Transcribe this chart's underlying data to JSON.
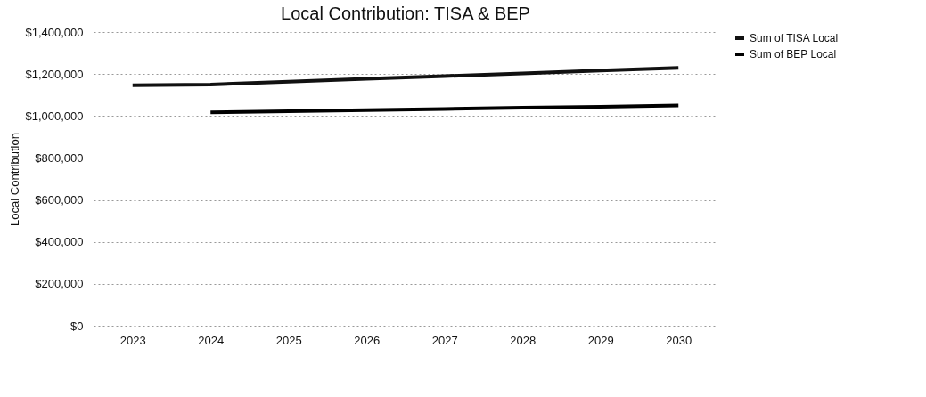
{
  "chart_data": {
    "type": "line",
    "title": "Local Contribution: TISA & BEP",
    "ylabel": "Local Contribution",
    "categories": [
      "2023",
      "2024",
      "2025",
      "2026",
      "2027",
      "2028",
      "2029",
      "2030"
    ],
    "series": [
      {
        "name": "Sum of TISA Local",
        "color": "#111111",
        "values": [
          1147000,
          1150000,
          1163000,
          1177000,
          1190000,
          1203000,
          1216000,
          1229000
        ]
      },
      {
        "name": "Sum of BEP Local",
        "color": "#000000",
        "values": [
          null,
          1017000,
          1022000,
          1028000,
          1033000,
          1039000,
          1044000,
          1050000
        ]
      }
    ],
    "ylim": [
      0,
      1400000
    ],
    "yticks": [
      {
        "value": 0,
        "label": "$0"
      },
      {
        "value": 200000,
        "label": "$200,000"
      },
      {
        "value": 400000,
        "label": "$400,000"
      },
      {
        "value": 600000,
        "label": "$600,000"
      },
      {
        "value": 800000,
        "label": "$800,000"
      },
      {
        "value": 1000000,
        "label": "$1,000,000"
      },
      {
        "value": 1200000,
        "label": "$1,200,000"
      },
      {
        "value": 1400000,
        "label": "$1,400,000"
      }
    ],
    "grid": "y",
    "legend": "right",
    "marker": "none",
    "line_style": "solid"
  }
}
